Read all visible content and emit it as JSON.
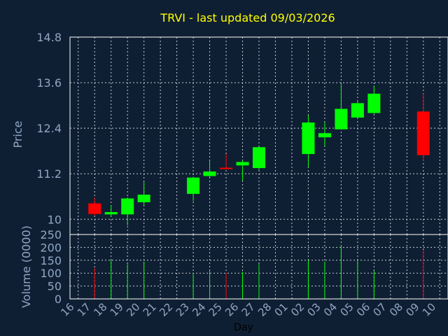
{
  "chart_title": "TRVI - last updated 09/03/2026",
  "colors": {
    "background": "#0f1f33",
    "plot_border": "#ffffff",
    "grid": "#c8ccd4",
    "title": "#ffff00",
    "axis_text": "#8fa7c4",
    "xlabel_text": "#000000",
    "up": "#00ff00",
    "down": "#ff0000"
  },
  "chart_data": [
    {
      "type": "candlestick",
      "title": "TRVI - last updated 09/03/2026",
      "ylabel": "Price",
      "ylim": [
        9.6,
        14.8
      ],
      "yticks": [
        "14.8",
        "13.6",
        "12.4",
        "11.2",
        "10"
      ],
      "grid": true,
      "x_ticks": [
        "16",
        "17",
        "18",
        "19",
        "20",
        "21",
        "22",
        "23",
        "24",
        "25",
        "26",
        "27",
        "28",
        "01",
        "02",
        "03",
        "04",
        "05",
        "06",
        "07",
        "08",
        "09",
        "10"
      ],
      "candles": [
        {
          "day": "17",
          "open": 10.42,
          "close": 10.14,
          "high": 10.57,
          "low": 10.1
        },
        {
          "day": "18",
          "open": 10.13,
          "close": 10.19,
          "high": 10.37,
          "low": 10.07
        },
        {
          "day": "19",
          "open": 10.13,
          "close": 10.55,
          "high": 10.58,
          "low": 9.84
        },
        {
          "day": "20",
          "open": 10.45,
          "close": 10.65,
          "high": 10.98,
          "low": 10.36
        },
        {
          "day": "23",
          "open": 10.67,
          "close": 11.1,
          "high": 11.12,
          "low": 10.48
        },
        {
          "day": "24",
          "open": 11.14,
          "close": 11.26,
          "high": 11.54,
          "low": 11.11
        },
        {
          "day": "25",
          "open": 11.36,
          "close": 11.34,
          "high": 11.72,
          "low": 11.34
        },
        {
          "day": "26",
          "open": 11.42,
          "close": 11.51,
          "high": 11.55,
          "low": 11.02
        },
        {
          "day": "27",
          "open": 11.35,
          "close": 11.9,
          "high": 11.91,
          "low": 11.3
        },
        {
          "day": "02",
          "open": 11.72,
          "close": 12.55,
          "high": 12.74,
          "low": 11.38
        },
        {
          "day": "03",
          "open": 12.16,
          "close": 12.27,
          "high": 12.56,
          "low": 11.93
        },
        {
          "day": "04",
          "open": 12.37,
          "close": 12.91,
          "high": 13.56,
          "low": 12.36
        },
        {
          "day": "05",
          "open": 12.68,
          "close": 13.06,
          "high": 13.13,
          "low": 12.64
        },
        {
          "day": "06",
          "open": 12.8,
          "close": 13.31,
          "high": 13.52,
          "low": 12.78
        },
        {
          "day": "09",
          "open": 12.84,
          "close": 11.69,
          "high": 13.31,
          "low": 11.54
        }
      ]
    },
    {
      "type": "bar",
      "ylabel": "Volume (0000)",
      "xlabel": "Day",
      "ylim": [
        0,
        250
      ],
      "yticks": [
        "250",
        "200",
        "150",
        "100",
        "50",
        "0"
      ],
      "grid": true,
      "categories": [
        "17",
        "18",
        "19",
        "20",
        "23",
        "24",
        "25",
        "26",
        "27",
        "02",
        "03",
        "04",
        "05",
        "06",
        "09"
      ],
      "values": [
        120,
        150,
        135,
        145,
        100,
        110,
        100,
        105,
        135,
        150,
        145,
        210,
        150,
        110,
        190
      ]
    }
  ]
}
